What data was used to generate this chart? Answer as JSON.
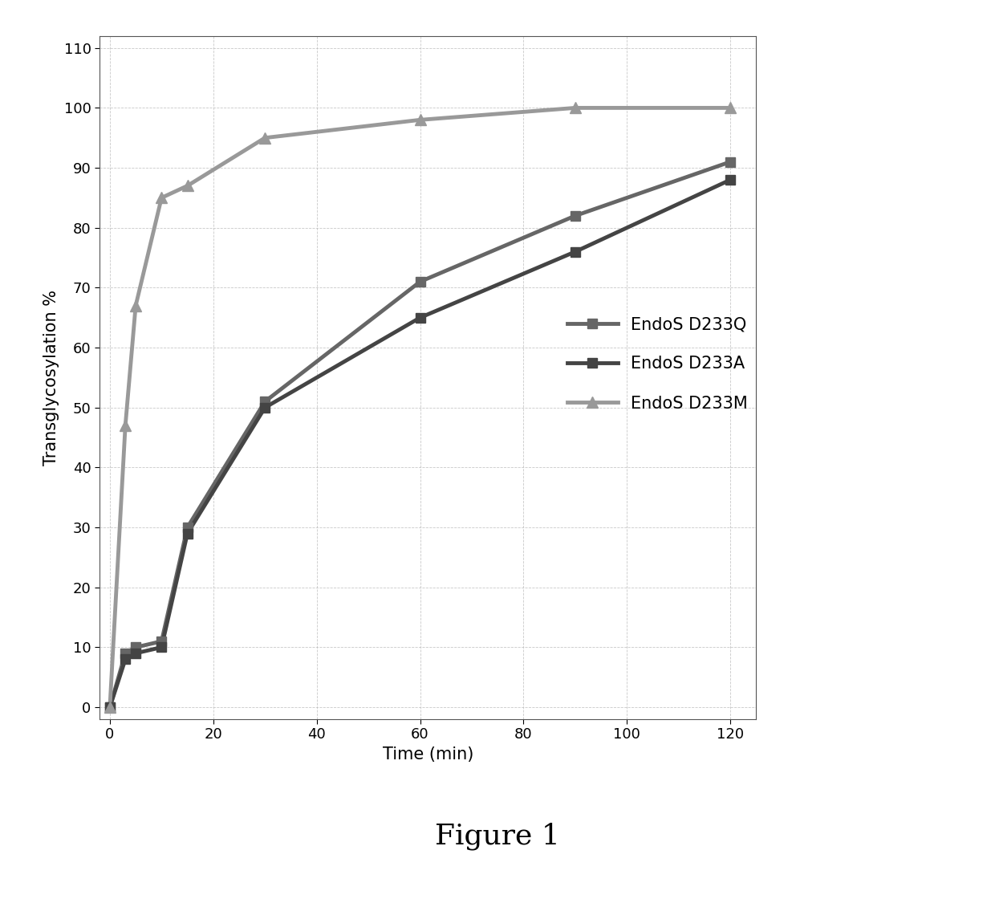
{
  "title": "",
  "xlabel": "Time (min)",
  "ylabel": "Transglycosylation %",
  "xlim": [
    -2,
    125
  ],
  "ylim": [
    -2,
    112
  ],
  "xticks": [
    0,
    20,
    40,
    60,
    80,
    100,
    120
  ],
  "yticks": [
    0,
    10,
    20,
    30,
    40,
    50,
    60,
    70,
    80,
    90,
    100,
    110
  ],
  "figure_caption": "Figure 1",
  "series": [
    {
      "label": "EndoS D233Q",
      "color": "#666666",
      "linewidth": 3.5,
      "marker": "s",
      "markersize": 9,
      "x": [
        0,
        3,
        5,
        10,
        15,
        30,
        60,
        90,
        120
      ],
      "y": [
        0,
        9,
        10,
        11,
        30,
        51,
        71,
        82,
        91
      ]
    },
    {
      "label": "EndoS D233A",
      "color": "#444444",
      "linewidth": 3.5,
      "marker": "s",
      "markersize": 9,
      "x": [
        0,
        3,
        5,
        10,
        15,
        30,
        60,
        90,
        120
      ],
      "y": [
        0,
        8,
        9,
        10,
        29,
        50,
        65,
        76,
        88
      ]
    },
    {
      "label": "EndoS D233M",
      "color": "#999999",
      "linewidth": 3.5,
      "marker": "^",
      "markersize": 10,
      "x": [
        0,
        3,
        5,
        10,
        15,
        30,
        60,
        90,
        120
      ],
      "y": [
        0,
        47,
        67,
        85,
        87,
        95,
        98,
        100,
        100
      ]
    }
  ],
  "legend_fontsize": 15,
  "axis_label_fontsize": 15,
  "tick_fontsize": 13,
  "caption_fontsize": 26
}
